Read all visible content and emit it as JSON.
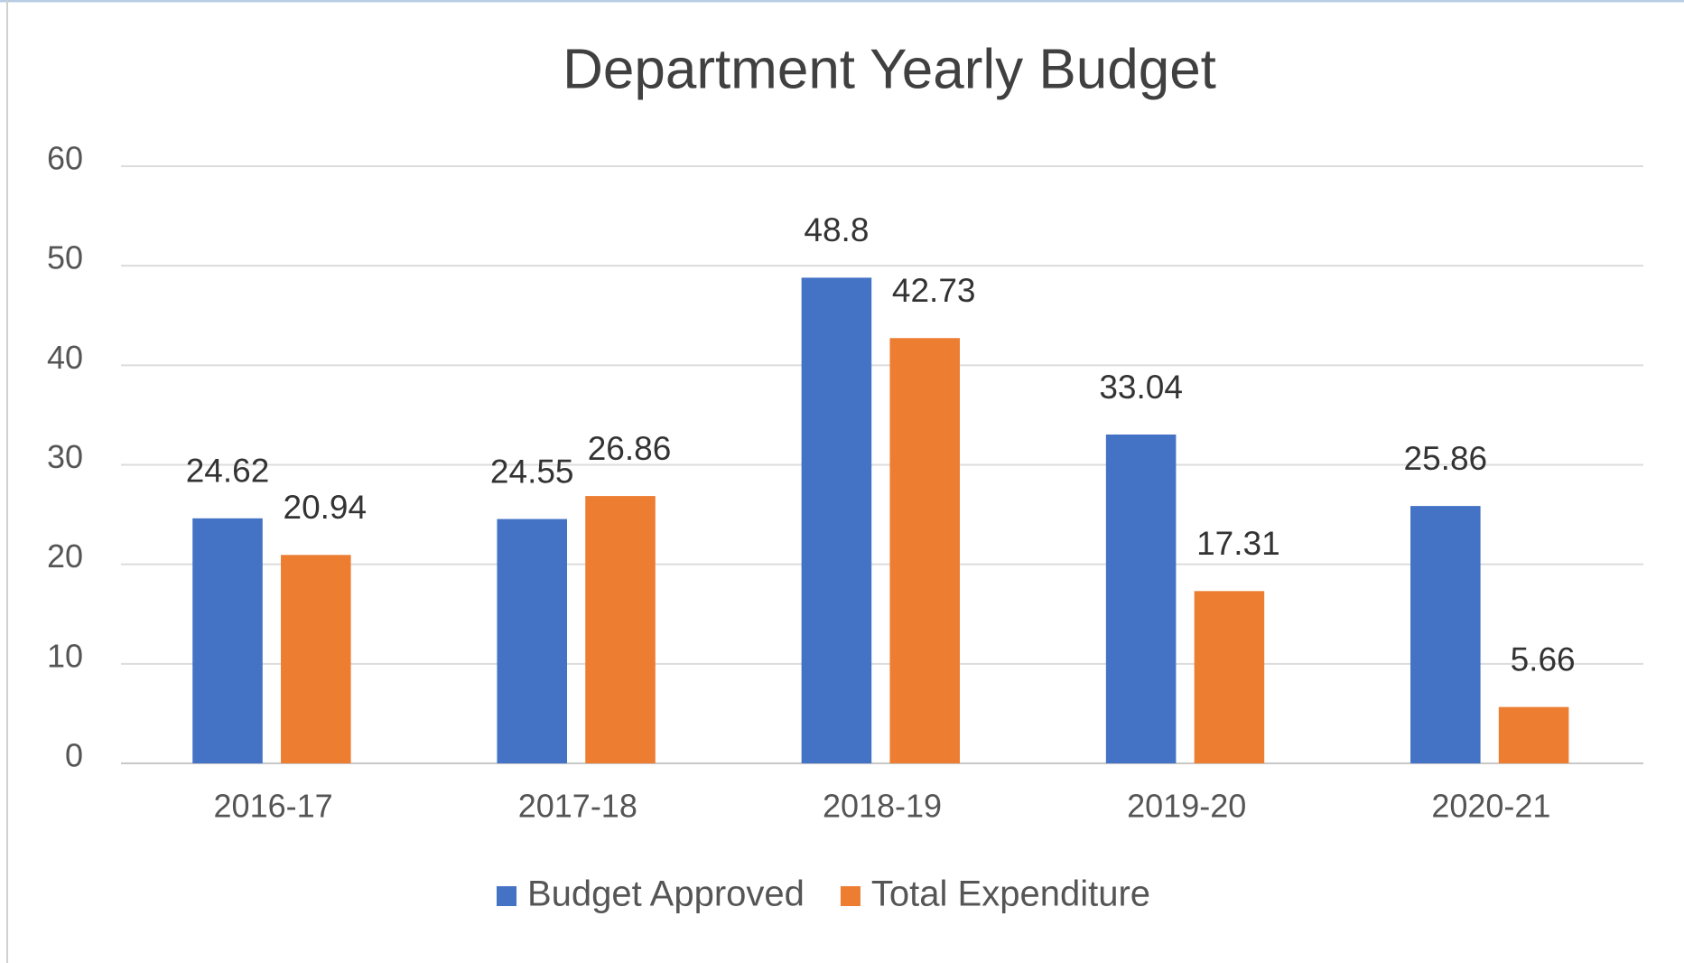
{
  "chart_data": {
    "type": "bar",
    "title": "Department Yearly Budget",
    "categories": [
      "2016-17",
      "2017-18",
      "2018-19",
      "2019-20",
      "2020-21"
    ],
    "series": [
      {
        "name": "Budget Approved",
        "color": "#4472c4",
        "values": [
          24.62,
          24.55,
          48.8,
          33.04,
          25.86
        ]
      },
      {
        "name": "Total Expenditure",
        "color": "#ed7d31",
        "values": [
          20.94,
          26.86,
          42.73,
          17.31,
          5.66
        ]
      }
    ],
    "ylim": [
      0,
      60
    ],
    "yticks": [
      0,
      10,
      20,
      30,
      40,
      50,
      60
    ],
    "grid": true,
    "legend": "bottom"
  }
}
